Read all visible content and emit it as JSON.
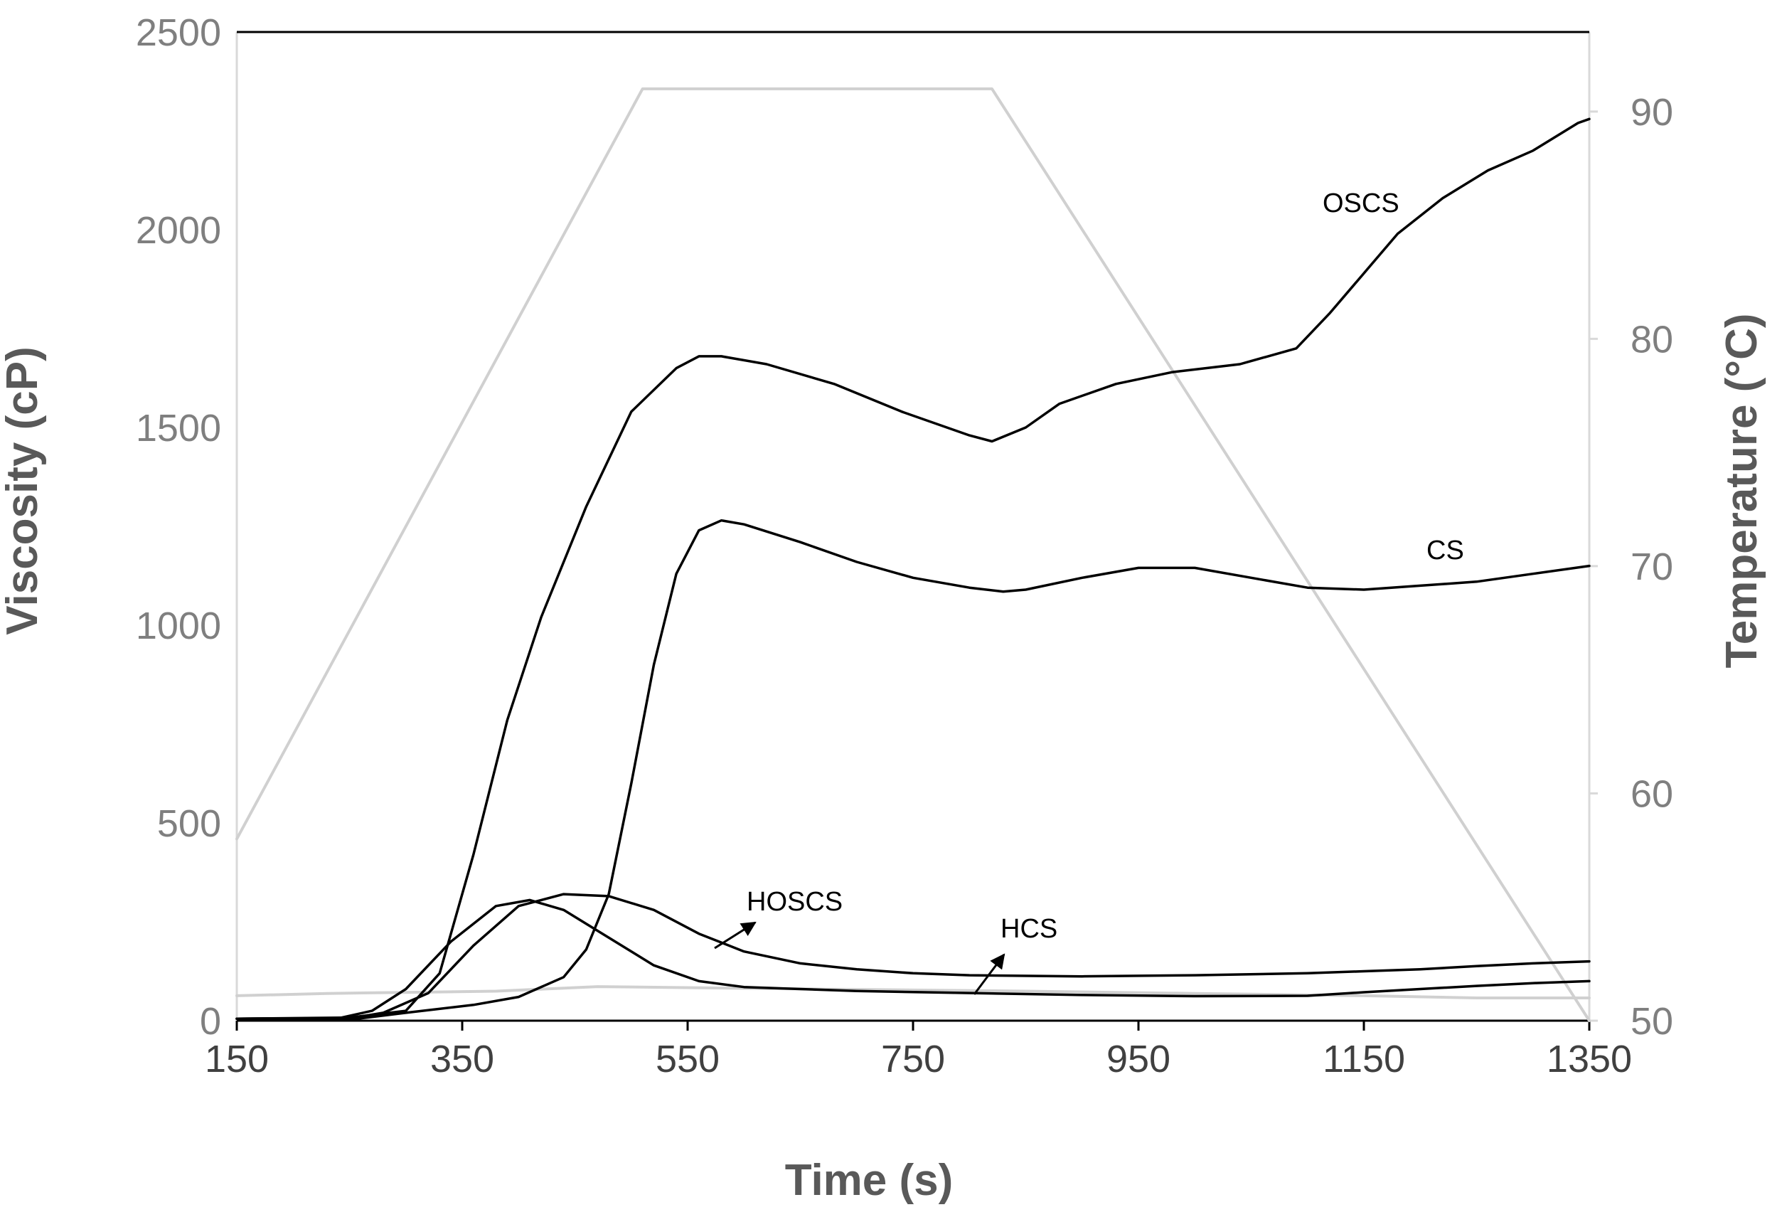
{
  "chart_data": {
    "type": "line",
    "title": "",
    "xlabel": "Time (s)",
    "ylabel": "Viscosity (cP)",
    "y2label": "Temperature (°C)",
    "xlim": [
      150,
      1350
    ],
    "ylim": [
      0,
      2500
    ],
    "y2lim": [
      50,
      93.5
    ],
    "x_ticks": [
      "150",
      "350",
      "550",
      "750",
      "950",
      "1150",
      "1350"
    ],
    "y_ticks": [
      "0",
      "500",
      "1000",
      "1500",
      "2000",
      "2500"
    ],
    "y2_ticks": [
      "50",
      "60",
      "70",
      "80",
      "90"
    ],
    "grid": false,
    "colors": {
      "viscosity": "#000000",
      "temperature": "#d0d0d0",
      "axis": "#000000"
    },
    "series": [
      {
        "name": "OSCS",
        "axis": "left",
        "x": [
          150,
          250,
          300,
          330,
          360,
          390,
          420,
          460,
          500,
          540,
          560,
          580,
          620,
          680,
          740,
          800,
          820,
          850,
          880,
          930,
          980,
          1040,
          1090,
          1120,
          1150,
          1180,
          1220,
          1260,
          1300,
          1340,
          1350
        ],
        "values": [
          5,
          8,
          25,
          120,
          420,
          760,
          1020,
          1300,
          1540,
          1650,
          1680,
          1680,
          1660,
          1610,
          1540,
          1480,
          1465,
          1500,
          1560,
          1610,
          1640,
          1660,
          1700,
          1790,
          1890,
          1990,
          2080,
          2150,
          2200,
          2270,
          2280
        ]
      },
      {
        "name": "CS",
        "axis": "left",
        "x": [
          150,
          260,
          300,
          360,
          400,
          440,
          460,
          480,
          500,
          520,
          540,
          560,
          580,
          600,
          650,
          700,
          750,
          800,
          830,
          850,
          900,
          950,
          1000,
          1050,
          1100,
          1150,
          1200,
          1250,
          1300,
          1350
        ],
        "values": [
          5,
          6,
          20,
          40,
          60,
          110,
          180,
          320,
          600,
          900,
          1130,
          1240,
          1265,
          1255,
          1210,
          1160,
          1120,
          1095,
          1085,
          1090,
          1120,
          1145,
          1145,
          1120,
          1095,
          1090,
          1100,
          1110,
          1130,
          1150
        ]
      },
      {
        "name": "HOSCS",
        "axis": "left",
        "x": [
          150,
          250,
          280,
          320,
          360,
          400,
          440,
          480,
          520,
          560,
          600,
          650,
          700,
          750,
          800,
          900,
          1000,
          1100,
          1150,
          1200,
          1250,
          1300,
          1350
        ],
        "values": [
          5,
          6,
          20,
          70,
          190,
          290,
          320,
          315,
          280,
          220,
          175,
          145,
          130,
          120,
          115,
          112,
          115,
          120,
          125,
          130,
          138,
          145,
          150
        ]
      },
      {
        "name": "HCS",
        "axis": "left",
        "x": [
          150,
          240,
          270,
          300,
          340,
          380,
          410,
          440,
          480,
          520,
          560,
          600,
          650,
          700,
          800,
          900,
          1000,
          1100,
          1150,
          1200,
          1250,
          1300,
          1350
        ],
        "values": [
          5,
          6,
          25,
          80,
          200,
          290,
          305,
          280,
          210,
          140,
          100,
          85,
          80,
          75,
          70,
          65,
          62,
          63,
          72,
          80,
          88,
          95,
          100
        ]
      },
      {
        "name": "Temperature",
        "axis": "right",
        "x": [
          150,
          510,
          820,
          1350
        ],
        "values": [
          58,
          91,
          91,
          50
        ]
      },
      {
        "name": "Temperature baseline",
        "axis": "right",
        "x": [
          150,
          230,
          380,
          470,
          650,
          850,
          1000,
          1150,
          1250,
          1350
        ],
        "values": [
          51.1,
          51.2,
          51.3,
          51.5,
          51.4,
          51.3,
          51.2,
          51.1,
          51.0,
          51.0
        ]
      }
    ],
    "annotations": [
      {
        "text": "OSCS",
        "series": "OSCS"
      },
      {
        "text": "CS",
        "series": "CS"
      },
      {
        "text": "HOSCS",
        "series": "HOSCS",
        "arrow": true
      },
      {
        "text": "HCS",
        "series": "HCS",
        "arrow": true
      }
    ]
  }
}
